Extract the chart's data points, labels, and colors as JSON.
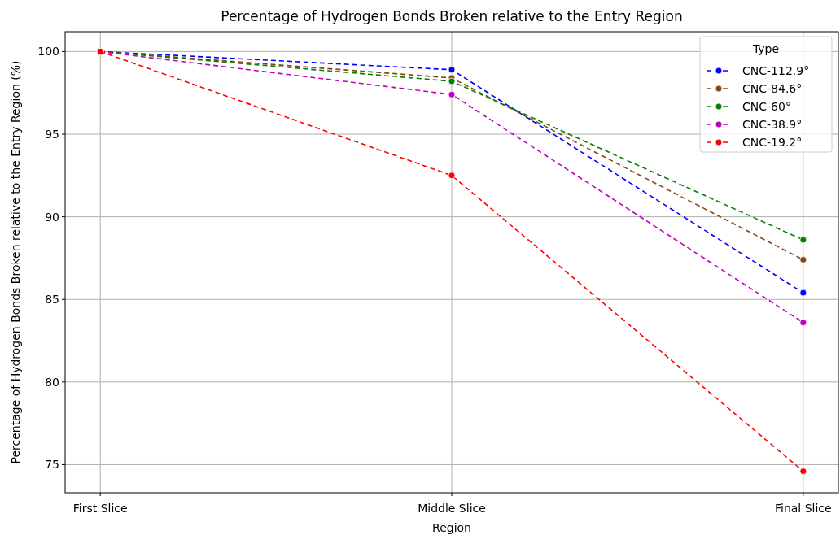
{
  "chart_data": {
    "type": "line",
    "title": "Percentage of Hydrogen Bonds Broken relative to the Entry Region",
    "xlabel": "Region",
    "ylabel": "Percentage of Hydrogen Bonds Broken relative to the Entry Region (%)",
    "legend_title": "Type",
    "categories": [
      "First Slice",
      "Middle Slice",
      "Final Slice"
    ],
    "series": [
      {
        "name": "CNC-112.9°",
        "color": "#0000ff",
        "values": [
          100,
          98.9,
          85.4
        ]
      },
      {
        "name": "CNC-84.6°",
        "color": "#8b4513",
        "values": [
          100,
          98.4,
          87.4
        ]
      },
      {
        "name": "CNC-60°",
        "color": "#008000",
        "values": [
          100,
          98.2,
          88.6
        ]
      },
      {
        "name": "CNC-38.9°",
        "color": "#bf00bf",
        "values": [
          100,
          97.4,
          83.6
        ]
      },
      {
        "name": "CNC-19.2°",
        "color": "#ff0000",
        "values": [
          100,
          92.5,
          74.6
        ]
      }
    ],
    "ylim": [
      73.3,
      101.2
    ],
    "yticks": [
      75,
      80,
      85,
      90,
      95,
      100
    ],
    "grid": true,
    "legend": "top right",
    "marker": "circle",
    "line_style": "dashed"
  }
}
